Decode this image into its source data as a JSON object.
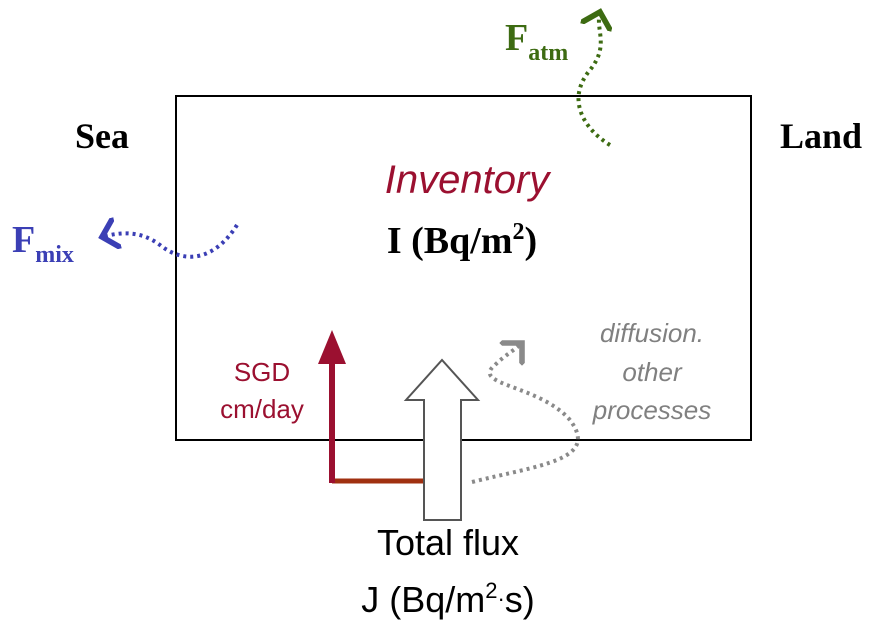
{
  "labels": {
    "sea": "Sea",
    "land": "Land",
    "inventory": "Inventory",
    "inventory_unit": {
      "main": "I (Bq/m",
      "sup": "2",
      "end": ")"
    },
    "f_atm": {
      "main": "F",
      "sub": "atm"
    },
    "f_mix": {
      "main": "F",
      "sub": "mix"
    },
    "sgd": [
      "SGD",
      "cm/day"
    ],
    "diffusion": [
      "diffusion.",
      "other",
      "processes"
    ],
    "total_flux": "Total flux",
    "total_flux_unit": {
      "main": "J (Bq/m",
      "sup": "2",
      "mid": "·",
      "end": "s)"
    }
  }
}
